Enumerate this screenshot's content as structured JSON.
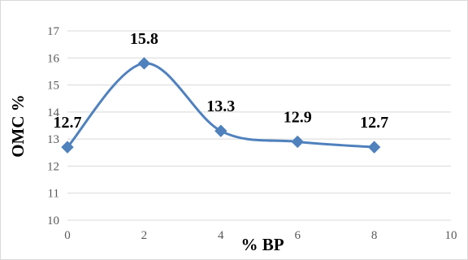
{
  "chart_data": {
    "type": "line",
    "smooth": true,
    "xlabel": "% BP",
    "ylabel": "OMC %",
    "xlim": [
      0,
      10
    ],
    "ylim": [
      10,
      17
    ],
    "x_ticks": [
      "0",
      "2",
      "4",
      "6",
      "8",
      "10"
    ],
    "y_ticks": [
      "10",
      "11",
      "12",
      "13",
      "14",
      "15",
      "16",
      "17"
    ],
    "grid": "horizontal",
    "legend": "none",
    "marker": "diamond",
    "series_color": "#4f81bd",
    "series": [
      {
        "x": [
          0,
          2,
          4,
          6,
          8
        ],
        "values": [
          12.7,
          15.8,
          13.3,
          12.9,
          12.7
        ],
        "data_labels": [
          "12.7",
          "15.8",
          "13.3",
          "12.9",
          "12.7"
        ]
      }
    ]
  }
}
